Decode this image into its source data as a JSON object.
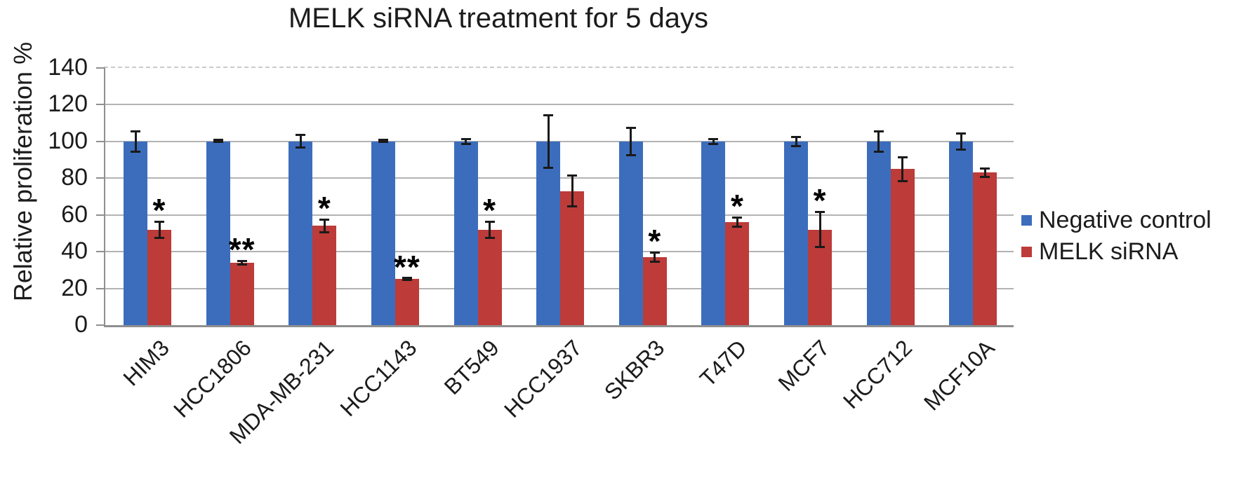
{
  "chart_data": {
    "type": "bar",
    "title": "MELK siRNA treatment for 5 days",
    "xlabel": "",
    "ylabel": "Relative proliferation %",
    "categories": [
      "HIM3",
      "HCC1806",
      "MDA-MB-231",
      "HCC1143",
      "BT549",
      "HCC1937",
      "SKBR3",
      "T47D",
      "MCF7",
      "HCC712",
      "MCF10A"
    ],
    "series": [
      {
        "name": "Negative control",
        "color": "#3c6dbd",
        "values": [
          100,
          100,
          100,
          100,
          100,
          100,
          100,
          100,
          100,
          100,
          100
        ],
        "errors": [
          6,
          1,
          4,
          1,
          2,
          15,
          8,
          2,
          3,
          6,
          5
        ]
      },
      {
        "name": "MELK siRNA",
        "color": "#bd3b38",
        "values": [
          52,
          34,
          54,
          25,
          52,
          73,
          37,
          56,
          52,
          85,
          83
        ],
        "errors": [
          5,
          1.5,
          4,
          1,
          5,
          9,
          3,
          3,
          10,
          7,
          3
        ]
      }
    ],
    "significance": [
      "*",
      "**",
      "*",
      "**",
      "*",
      "",
      "*",
      "*",
      "*",
      "",
      ""
    ],
    "ylim": [
      0,
      140
    ],
    "yticks": [
      0,
      20,
      40,
      60,
      80,
      100,
      120,
      140
    ],
    "grid": "horizontal",
    "error_bars": true,
    "legend_position": "right"
  }
}
